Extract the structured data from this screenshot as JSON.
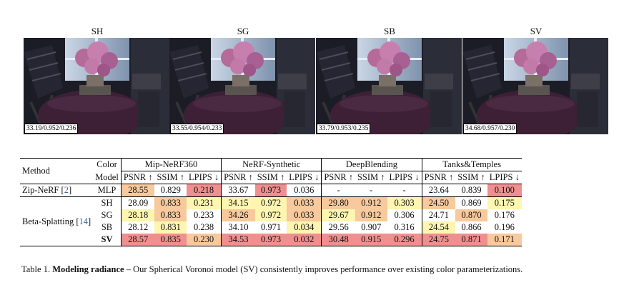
{
  "figure": {
    "panels": [
      {
        "label": "SH",
        "metrics": "33.19/0.952/0.236"
      },
      {
        "label": "SG",
        "metrics": "33.55/0.954/0.233"
      },
      {
        "label": "SB",
        "metrics": "33.79/0.953/0.235"
      },
      {
        "label": "SV",
        "metrics": "34.68/0.957/0.230"
      }
    ]
  },
  "table": {
    "header": {
      "method": "Method",
      "color_line1": "Color",
      "color_line2": "Model",
      "datasets": [
        "Mip-NeRF360",
        "NeRF-Synthetic",
        "DeepBlending",
        "Tanks&Temples"
      ],
      "metrics": [
        "PSNR ↑",
        "SSIM ↑",
        "LPIPS ↓"
      ]
    },
    "groups": [
      {
        "method": "Zip-NeRF",
        "cite": "2"
      },
      {
        "method": "Beta-Splatting",
        "cite": "14"
      }
    ],
    "rows": [
      {
        "model": "MLP",
        "cells": [
          "28.55",
          "0.829",
          "0.218",
          "33.67",
          "0.973",
          "0.036",
          "-",
          "-",
          "-",
          "23.64",
          "0.839",
          "0.100"
        ],
        "colors": [
          "#f7c99c",
          "",
          "#f08f8f",
          "",
          "#f08f8f",
          "",
          "",
          "",
          "",
          "",
          "",
          "#f08f8f"
        ]
      },
      {
        "model": "SH",
        "cells": [
          "28.09",
          "0.833",
          "0.231",
          "34.15",
          "0.972",
          "0.033",
          "29.80",
          "0.912",
          "0.303",
          "24.50",
          "0.869",
          "0.175"
        ],
        "colors": [
          "",
          "#f7c99c",
          "#fdf5b0",
          "#fdf5b0",
          "#fdf5b0",
          "#f7c99c",
          "#f7c99c",
          "#f7c99c",
          "#fdf5b0",
          "#f7c99c",
          "",
          "#fdf5b0"
        ]
      },
      {
        "model": "SG",
        "cells": [
          "28.18",
          "0.833",
          "0.233",
          "34.26",
          "0.972",
          "0.033",
          "29.67",
          "0.912",
          "0.306",
          "24.71",
          "0.870",
          "0.176"
        ],
        "colors": [
          "#fdf5b0",
          "#f7c99c",
          "",
          "#f7c99c",
          "#fdf5b0",
          "#f7c99c",
          "#fdf5b0",
          "#f7c99c",
          "",
          "",
          "#f7c99c",
          ""
        ]
      },
      {
        "model": "SB",
        "cells": [
          "28.12",
          "0.831",
          "0.238",
          "34.10",
          "0.971",
          "0.034",
          "29.56",
          "0.907",
          "0.316",
          "24.54",
          "0.866",
          "0.196"
        ],
        "colors": [
          "",
          "#fdf5b0",
          "",
          "",
          "",
          "#fdf5b0",
          "",
          "",
          "",
          "#fdf5b0",
          "",
          ""
        ]
      },
      {
        "model": "SV",
        "cells": [
          "28.57",
          "0.835",
          "0.230",
          "34.53",
          "0.973",
          "0.032",
          "30.48",
          "0.915",
          "0.296",
          "24.75",
          "0.871",
          "0.171"
        ],
        "colors": [
          "#f08f8f",
          "#f08f8f",
          "#f7c99c",
          "#f08f8f",
          "#f08f8f",
          "#f08f8f",
          "#f08f8f",
          "#f08f8f",
          "#f08f8f",
          "#f08f8f",
          "#f08f8f",
          "#f7c99c"
        ]
      }
    ]
  },
  "caption": {
    "label": "Table 1.",
    "title": "Modeling radiance",
    "text": " – Our Spherical Voronoi model (SV) consistently improves performance over existing color parameterizations."
  }
}
